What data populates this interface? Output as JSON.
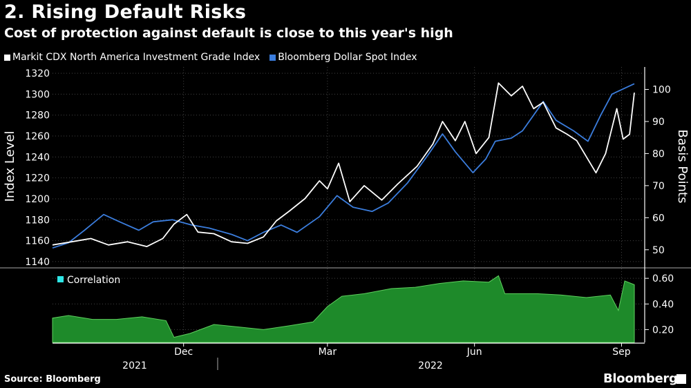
{
  "header": {
    "title": "2. Rising Default Risks",
    "subtitle": "Cost of protection against default is close to this year's high"
  },
  "footer": {
    "source": "Source: Bloomberg",
    "brand": "Bloomberg"
  },
  "colors": {
    "cdx": "#ffffff",
    "dollar": "#3b7ddd",
    "correlation_fill": "#1e8a2a",
    "correlation_swatch": "#2ee6e6",
    "divider": "#555555"
  },
  "chart_data": [
    {
      "type": "line",
      "legend": [
        "Markit CDX North America Investment Grade Index",
        "Bloomberg Dollar Spot Index"
      ],
      "legend_position": "top-left",
      "ylabel_left": "Index Level",
      "ylabel_right": "Basis Points",
      "ylim_left": [
        1136,
        1326
      ],
      "ylim_right": [
        45,
        107
      ],
      "yticks_left": [
        1140,
        1160,
        1180,
        1200,
        1220,
        1240,
        1260,
        1280,
        1300,
        1320
      ],
      "yticks_right": [
        50,
        60,
        70,
        80,
        90,
        100
      ],
      "x_range": [
        "2021-09-10",
        "2022-09-09"
      ],
      "series": [
        {
          "name": "Markit CDX North America Investment Grade Index",
          "axis": "right",
          "points": [
            [
              "2021-09-10",
              51.5
            ],
            [
              "2021-09-22",
              52.5
            ],
            [
              "2021-10-04",
              53.5
            ],
            [
              "2021-10-15",
              51.5
            ],
            [
              "2021-10-27",
              52.5
            ],
            [
              "2021-11-08",
              51.0
            ],
            [
              "2021-11-18",
              53.5
            ],
            [
              "2021-11-25",
              58.0
            ],
            [
              "2021-12-03",
              61.0
            ],
            [
              "2021-12-10",
              55.5
            ],
            [
              "2021-12-20",
              55.0
            ],
            [
              "2021-12-31",
              52.5
            ],
            [
              "2022-01-10",
              52.0
            ],
            [
              "2022-01-20",
              54.0
            ],
            [
              "2022-01-28",
              59.0
            ],
            [
              "2022-02-05",
              62.0
            ],
            [
              "2022-02-15",
              66.0
            ],
            [
              "2022-02-24",
              71.5
            ],
            [
              "2022-03-01",
              69.0
            ],
            [
              "2022-03-08",
              77.0
            ],
            [
              "2022-03-15",
              65.0
            ],
            [
              "2022-03-24",
              70.0
            ],
            [
              "2022-04-04",
              65.5
            ],
            [
              "2022-04-14",
              70.5
            ],
            [
              "2022-04-26",
              76.0
            ],
            [
              "2022-05-06",
              83.0
            ],
            [
              "2022-05-12",
              90.0
            ],
            [
              "2022-05-20",
              84.0
            ],
            [
              "2022-05-26",
              90.0
            ],
            [
              "2022-06-02",
              80.0
            ],
            [
              "2022-06-10",
              85.0
            ],
            [
              "2022-06-16",
              102.0
            ],
            [
              "2022-06-24",
              98.0
            ],
            [
              "2022-07-01",
              101.0
            ],
            [
              "2022-07-08",
              94.0
            ],
            [
              "2022-07-14",
              96.0
            ],
            [
              "2022-07-22",
              88.0
            ],
            [
              "2022-07-29",
              86.0
            ],
            [
              "2022-08-04",
              84.0
            ],
            [
              "2022-08-10",
              79.0
            ],
            [
              "2022-08-16",
              74.0
            ],
            [
              "2022-08-22",
              80.0
            ],
            [
              "2022-08-29",
              94.0
            ],
            [
              "2022-09-02",
              84.5
            ],
            [
              "2022-09-06",
              86.0
            ],
            [
              "2022-09-09",
              99.0
            ]
          ]
        },
        {
          "name": "Bloomberg Dollar Spot Index",
          "axis": "left",
          "points": [
            [
              "2021-09-10",
              1153
            ],
            [
              "2021-09-20",
              1158
            ],
            [
              "2021-09-30",
              1170
            ],
            [
              "2021-10-12",
              1185
            ],
            [
              "2021-10-22",
              1178
            ],
            [
              "2021-11-03",
              1170
            ],
            [
              "2021-11-12",
              1178
            ],
            [
              "2021-11-24",
              1180
            ],
            [
              "2021-12-06",
              1175
            ],
            [
              "2021-12-17",
              1172
            ],
            [
              "2021-12-31",
              1166
            ],
            [
              "2022-01-10",
              1160
            ],
            [
              "2022-01-20",
              1168
            ],
            [
              "2022-01-31",
              1175
            ],
            [
              "2022-02-10",
              1168
            ],
            [
              "2022-02-24",
              1183
            ],
            [
              "2022-03-07",
              1203
            ],
            [
              "2022-03-17",
              1192
            ],
            [
              "2022-03-29",
              1188
            ],
            [
              "2022-04-08",
              1196
            ],
            [
              "2022-04-20",
              1215
            ],
            [
              "2022-05-02",
              1240
            ],
            [
              "2022-05-12",
              1262
            ],
            [
              "2022-05-20",
              1245
            ],
            [
              "2022-05-31",
              1225
            ],
            [
              "2022-06-08",
              1238
            ],
            [
              "2022-06-14",
              1255
            ],
            [
              "2022-06-24",
              1258
            ],
            [
              "2022-07-01",
              1265
            ],
            [
              "2022-07-08",
              1280
            ],
            [
              "2022-07-14",
              1293
            ],
            [
              "2022-07-22",
              1275
            ],
            [
              "2022-08-02",
              1265
            ],
            [
              "2022-08-11",
              1255
            ],
            [
              "2022-08-19",
              1280
            ],
            [
              "2022-08-26",
              1300
            ],
            [
              "2022-09-02",
              1305
            ],
            [
              "2022-09-09",
              1310
            ]
          ]
        }
      ]
    },
    {
      "type": "area",
      "legend": [
        "Correlation"
      ],
      "legend_position": "top-left",
      "ylim": [
        0.1,
        0.66
      ],
      "yticks": [
        0.2,
        0.4,
        0.6
      ],
      "xticks": [
        "Dec",
        "Mar",
        "Jun",
        "Sep"
      ],
      "year_labels": [
        "2021",
        "2022"
      ],
      "x_range": [
        "2021-09-10",
        "2022-09-09"
      ],
      "series": [
        {
          "name": "Correlation",
          "points": [
            [
              "2021-09-10",
              0.29
            ],
            [
              "2021-09-20",
              0.31
            ],
            [
              "2021-10-05",
              0.28
            ],
            [
              "2021-10-20",
              0.28
            ],
            [
              "2021-11-05",
              0.3
            ],
            [
              "2021-11-20",
              0.27
            ],
            [
              "2021-11-25",
              0.14
            ],
            [
              "2021-12-05",
              0.17
            ],
            [
              "2021-12-20",
              0.24
            ],
            [
              "2022-01-05",
              0.22
            ],
            [
              "2022-01-20",
              0.2
            ],
            [
              "2022-02-05",
              0.23
            ],
            [
              "2022-02-20",
              0.26
            ],
            [
              "2022-03-01",
              0.38
            ],
            [
              "2022-03-10",
              0.46
            ],
            [
              "2022-03-24",
              0.48
            ],
            [
              "2022-04-10",
              0.52
            ],
            [
              "2022-04-25",
              0.53
            ],
            [
              "2022-05-10",
              0.56
            ],
            [
              "2022-05-25",
              0.58
            ],
            [
              "2022-06-10",
              0.57
            ],
            [
              "2022-06-16",
              0.62
            ],
            [
              "2022-06-20",
              0.48
            ],
            [
              "2022-07-10",
              0.48
            ],
            [
              "2022-07-25",
              0.47
            ],
            [
              "2022-08-10",
              0.45
            ],
            [
              "2022-08-25",
              0.47
            ],
            [
              "2022-08-30",
              0.35
            ],
            [
              "2022-09-03",
              0.58
            ],
            [
              "2022-09-09",
              0.55
            ]
          ]
        }
      ]
    }
  ]
}
